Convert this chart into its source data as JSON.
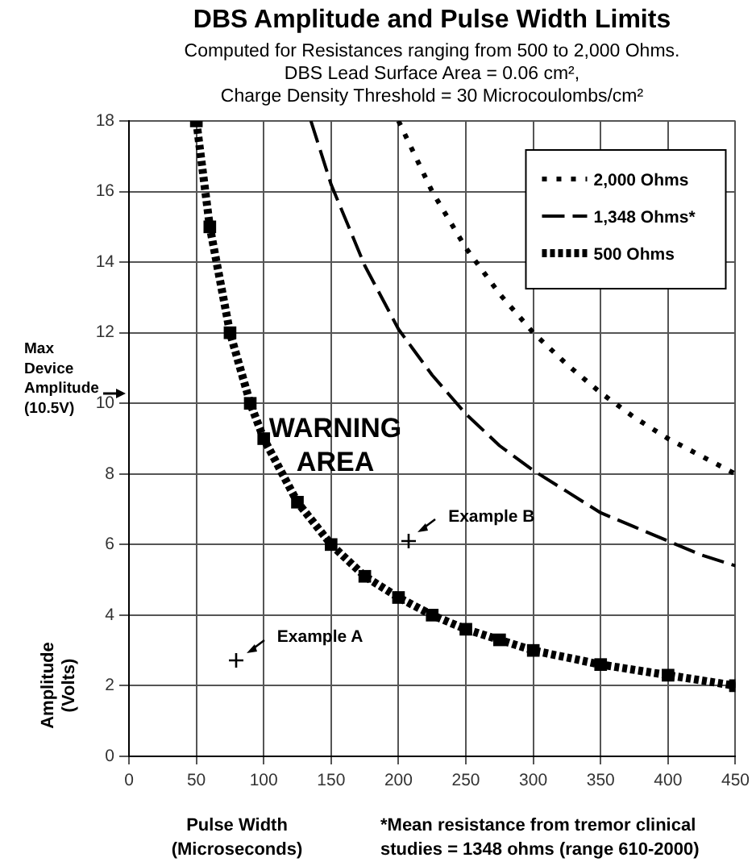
{
  "chart_data": {
    "type": "line",
    "title": "DBS Amplitude and Pulse Width Limits",
    "subtitle": "Computed for Resistances ranging from 500 to 2,000 Ohms.\nDBS Lead Surface Area = 0.06 cm²,\nCharge Density Threshold = 30 Microcoulombs/cm²",
    "xlabel": "Pulse Width\n(Microseconds)",
    "ylabel": "Amplitude\n(Volts)",
    "xlim": [
      0,
      450
    ],
    "xticks": [
      0,
      50,
      100,
      150,
      200,
      250,
      300,
      350,
      400,
      450
    ],
    "ylim": [
      0,
      18
    ],
    "yticks": [
      0,
      2,
      4,
      6,
      8,
      10,
      12,
      14,
      16,
      18
    ],
    "grid": true,
    "legend": "top right",
    "series": [
      {
        "name": "2,000 Ohms",
        "color": "#000000",
        "line_style": "dotted",
        "x": [
          200,
          225,
          250,
          275,
          300,
          325,
          350,
          375,
          400,
          425,
          450
        ],
        "values": [
          18,
          16,
          14.4,
          13.1,
          12,
          11.1,
          10.3,
          9.6,
          9,
          8.5,
          8
        ]
      },
      {
        "name": "1,348 Ohms*",
        "color": "#000000",
        "line_style": "dashed",
        "x": [
          135,
          150,
          175,
          200,
          225,
          250,
          275,
          300,
          325,
          350,
          375,
          400,
          425,
          450
        ],
        "values": [
          18,
          16.2,
          13.9,
          12.1,
          10.8,
          9.7,
          8.8,
          8.1,
          7.5,
          6.9,
          6.5,
          6.1,
          5.7,
          5.4
        ]
      },
      {
        "name": "500 Ohms",
        "color": "#000000",
        "line_style": "dotted",
        "marker": "square",
        "x": [
          50,
          60,
          75,
          90,
          100,
          125,
          150,
          175,
          200,
          225,
          250,
          275,
          300,
          350,
          400,
          450
        ],
        "values": [
          18,
          15,
          12,
          10,
          9,
          7.2,
          6,
          5.1,
          4.5,
          4,
          3.6,
          3.3,
          3,
          2.6,
          2.3,
          2
        ]
      }
    ],
    "annotations": [
      "WARNING\nAREA",
      {
        "text": "Example A",
        "x": 80,
        "y": 2.7
      },
      {
        "text": "Example B",
        "x": 207,
        "y": 6.1
      },
      "Max\nDevice\nAmplitude\n(10.5V)",
      "*Mean resistance from tremor clinical\nstudies = 1348 ohms (range 610-2000)"
    ]
  }
}
